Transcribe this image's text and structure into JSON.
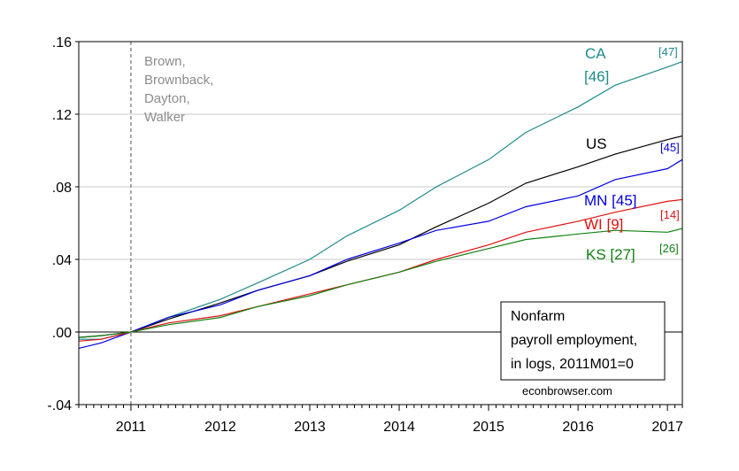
{
  "chart_data": {
    "type": "line",
    "title": "",
    "xlabel": "",
    "ylabel": "",
    "xlim": [
      "2010-06",
      "2017-03"
    ],
    "ylim": [
      -0.04,
      0.16
    ],
    "grid": true,
    "x_ticks": [
      "2011",
      "2012",
      "2013",
      "2014",
      "2015",
      "2016",
      "2017"
    ],
    "y_ticks": [
      {
        "value": -0.04,
        "label": "-.04"
      },
      {
        "value": 0.0,
        "label": ".00"
      },
      {
        "value": 0.04,
        "label": ".04"
      },
      {
        "value": 0.08,
        "label": ".08"
      },
      {
        "value": 0.12,
        "label": ".12"
      },
      {
        "value": 0.16,
        "label": ".16"
      }
    ],
    "vertical_reference_line": {
      "x": "2011-01",
      "label": "Brown,\nBrownback,\nDayton,\nWalker"
    },
    "horizontal_reference_line": {
      "y": 0.0
    },
    "series": [
      {
        "name": "CA",
        "color": "#1f8a8a",
        "x": [
          "2010-06",
          "2010-09",
          "2011-01",
          "2011-06",
          "2012-01",
          "2012-06",
          "2013-01",
          "2013-06",
          "2014-01",
          "2014-06",
          "2015-01",
          "2015-06",
          "2016-01",
          "2016-06",
          "2017-01",
          "2017-03"
        ],
        "y": [
          -0.004,
          -0.004,
          0.0,
          0.008,
          0.018,
          0.027,
          0.04,
          0.053,
          0.067,
          0.08,
          0.095,
          0.11,
          0.124,
          0.136,
          0.146,
          0.149
        ]
      },
      {
        "name": "US",
        "color": "#000000",
        "x": [
          "2010-06",
          "2010-09",
          "2011-01",
          "2011-06",
          "2012-01",
          "2012-06",
          "2013-01",
          "2013-06",
          "2014-01",
          "2014-06",
          "2015-01",
          "2015-06",
          "2016-01",
          "2016-06",
          "2017-01",
          "2017-03"
        ],
        "y": [
          -0.003,
          -0.002,
          0.0,
          0.007,
          0.016,
          0.023,
          0.031,
          0.039,
          0.048,
          0.058,
          0.071,
          0.082,
          0.091,
          0.098,
          0.106,
          0.108
        ]
      },
      {
        "name": "MN",
        "color": "#0000dd",
        "x": [
          "2010-06",
          "2010-09",
          "2011-01",
          "2011-06",
          "2012-01",
          "2012-06",
          "2013-01",
          "2013-06",
          "2014-01",
          "2014-06",
          "2015-01",
          "2015-06",
          "2016-01",
          "2016-06",
          "2017-01",
          "2017-03"
        ],
        "y": [
          -0.009,
          -0.006,
          0.0,
          0.008,
          0.015,
          0.023,
          0.031,
          0.04,
          0.049,
          0.056,
          0.061,
          0.069,
          0.075,
          0.084,
          0.09,
          0.095
        ]
      },
      {
        "name": "WI",
        "color": "#dd1111",
        "x": [
          "2010-06",
          "2010-09",
          "2011-01",
          "2011-06",
          "2012-01",
          "2012-06",
          "2013-01",
          "2013-06",
          "2014-01",
          "2014-06",
          "2015-01",
          "2015-06",
          "2016-01",
          "2016-06",
          "2017-01",
          "2017-03"
        ],
        "y": [
          -0.005,
          -0.004,
          0.0,
          0.005,
          0.009,
          0.014,
          0.021,
          0.026,
          0.033,
          0.04,
          0.048,
          0.055,
          0.061,
          0.066,
          0.072,
          0.073
        ]
      },
      {
        "name": "KS",
        "color": "#128012",
        "x": [
          "2010-06",
          "2010-09",
          "2011-01",
          "2011-06",
          "2012-01",
          "2012-06",
          "2013-01",
          "2013-06",
          "2014-01",
          "2014-06",
          "2015-01",
          "2015-06",
          "2016-01",
          "2016-06",
          "2017-01",
          "2017-03"
        ],
        "y": [
          -0.003,
          -0.002,
          0.0,
          0.004,
          0.008,
          0.014,
          0.02,
          0.026,
          0.033,
          0.039,
          0.046,
          0.051,
          0.054,
          0.056,
          0.055,
          0.057
        ]
      }
    ],
    "annotations": [
      {
        "text": "CA",
        "color": "#1f8a8a",
        "series": "CA"
      },
      {
        "text": "[46]",
        "color": "#1f8a8a",
        "series": "CA"
      },
      {
        "text": "[47]",
        "color": "#1f8a8a",
        "series": "CA"
      },
      {
        "text": "US",
        "color": "#000000",
        "series": "US"
      },
      {
        "text": "[45]",
        "color": "#0000dd",
        "series": "MN"
      },
      {
        "text": "MN [45]",
        "color": "#0000dd",
        "series": "MN"
      },
      {
        "text": "[14]",
        "color": "#dd1111",
        "series": "WI"
      },
      {
        "text": "WI [9]",
        "color": "#dd1111",
        "series": "WI"
      },
      {
        "text": "KS [27]",
        "color": "#128012",
        "series": "KS"
      },
      {
        "text": "[26]",
        "color": "#128012",
        "series": "KS"
      }
    ],
    "note_box": [
      "Nonfarm",
      "payroll employment,",
      "in logs, 2011M01=0"
    ],
    "source_label": "econbrowser.com"
  }
}
